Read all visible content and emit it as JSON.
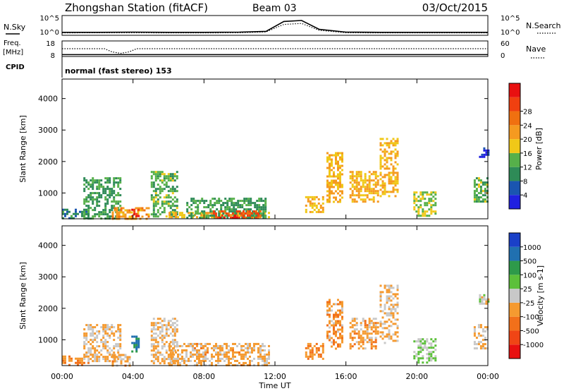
{
  "header": {
    "station": "Zhongshan Station (fitACF)",
    "beam": "Beam 03",
    "date": "03/Oct/2015"
  },
  "sky_panel": {
    "left_label": "N.Sky",
    "right_label": "N.Search",
    "left_ticks": [
      "10^5",
      "10^0"
    ],
    "right_ticks": [
      "10^5",
      "10^0"
    ]
  },
  "freq_panel": {
    "label_line1": "Freq.",
    "label_line2": "[MHz]",
    "left_ticks": [
      "18",
      "8"
    ],
    "right_ticks": [
      "60",
      "0"
    ],
    "right_label": "Nave"
  },
  "cpid": {
    "label": "CPID",
    "text": "normal (fast stereo) 153"
  },
  "time_axis": {
    "label": "Time UT",
    "ticks": [
      "00:00",
      "04:00",
      "08:00",
      "12:00",
      "16:00",
      "20:00",
      "00:00"
    ]
  },
  "colors": {
    "power": [
      "#2020e0",
      "#1a55b0",
      "#2e8b57",
      "#56b04a",
      "#f0c818",
      "#f59a20",
      "#f07010",
      "#f04010",
      "#e81010"
    ],
    "velocity": [
      "#e81010",
      "#f04515",
      "#f2701a",
      "#f59a30",
      "#c8c8c8",
      "#5cc03a",
      "#2e9a4a",
      "#2070b0",
      "#1a40c8"
    ],
    "frame": "#000000"
  },
  "chart_data": [
    {
      "type": "heatmap",
      "panel": "power",
      "ylabel": "Slant Range [km]",
      "xlabel": "Time UT",
      "x_range_hours": [
        0,
        24
      ],
      "ylim_km": [
        180,
        4620
      ],
      "y_ticks": [
        1000,
        2000,
        3000,
        4000
      ],
      "colorbar": {
        "label": "Power [dB]",
        "ticks": [
          "4",
          "8",
          "12",
          "16",
          "20",
          "24",
          "28"
        ],
        "range": [
          0,
          32
        ]
      },
      "regions": [
        {
          "t0": 0.0,
          "t1": 1.5,
          "r0": 200,
          "r1": 500,
          "value": 8
        },
        {
          "t0": 1.2,
          "t1": 3.3,
          "r0": 200,
          "r1": 1500,
          "value": 10
        },
        {
          "t0": 2.8,
          "t1": 4.9,
          "r0": 200,
          "r1": 550,
          "value": 20
        },
        {
          "t0": 3.9,
          "t1": 4.3,
          "r0": 250,
          "r1": 500,
          "value": 27
        },
        {
          "t0": 5.0,
          "t1": 6.5,
          "r0": 250,
          "r1": 1700,
          "value": 12
        },
        {
          "t0": 6.0,
          "t1": 11.7,
          "r0": 200,
          "r1": 400,
          "value": 17
        },
        {
          "t0": 7.0,
          "t1": 11.5,
          "r0": 220,
          "r1": 850,
          "value": 10
        },
        {
          "t0": 8.5,
          "t1": 11.2,
          "r0": 230,
          "r1": 450,
          "value": 26
        },
        {
          "t0": 13.7,
          "t1": 14.7,
          "r0": 400,
          "r1": 900,
          "value": 17
        },
        {
          "t0": 14.9,
          "t1": 15.8,
          "r0": 700,
          "r1": 2300,
          "value": 18
        },
        {
          "t0": 16.2,
          "t1": 17.8,
          "r0": 700,
          "r1": 1700,
          "value": 18
        },
        {
          "t0": 17.9,
          "t1": 18.9,
          "r0": 900,
          "r1": 2750,
          "value": 18
        },
        {
          "t0": 19.8,
          "t1": 21.0,
          "r0": 300,
          "r1": 1050,
          "value": 14
        },
        {
          "t0": 23.2,
          "t1": 24.0,
          "r0": 700,
          "r1": 1500,
          "value": 12
        },
        {
          "t0": 23.5,
          "t1": 24.0,
          "r0": 2150,
          "r1": 2450,
          "value": 4
        }
      ]
    },
    {
      "type": "heatmap",
      "panel": "velocity",
      "ylabel": "Slant Range [km]",
      "xlabel": "Time UT",
      "x_range_hours": [
        0,
        24
      ],
      "ylim_km": [
        180,
        4620
      ],
      "y_ticks": [
        1000,
        2000,
        3000,
        4000
      ],
      "colorbar": {
        "label": "Velocity [m s-1]",
        "ticks": [
          "-1000",
          "-500",
          "-100",
          "-25",
          "25",
          "100",
          "500",
          "1000"
        ],
        "range": [
          -1200,
          1200
        ]
      },
      "regions": [
        {
          "t0": 0.0,
          "t1": 1.5,
          "r0": 200,
          "r1": 500,
          "value": -300
        },
        {
          "t0": 1.2,
          "t1": 3.3,
          "r0": 300,
          "r1": 1500,
          "value": -150
        },
        {
          "t0": 2.8,
          "t1": 3.8,
          "r0": 200,
          "r1": 550,
          "value": -200
        },
        {
          "t0": 3.9,
          "t1": 4.3,
          "r0": 600,
          "r1": 1200,
          "value": 700
        },
        {
          "t0": 5.0,
          "t1": 6.5,
          "r0": 250,
          "r1": 1700,
          "value": -150
        },
        {
          "t0": 6.0,
          "t1": 11.7,
          "r0": 200,
          "r1": 900,
          "value": -200
        },
        {
          "t0": 13.7,
          "t1": 14.7,
          "r0": 400,
          "r1": 900,
          "value": -400
        },
        {
          "t0": 14.9,
          "t1": 15.8,
          "r0": 700,
          "r1": 2300,
          "value": -300
        },
        {
          "t0": 16.2,
          "t1": 17.8,
          "r0": 700,
          "r1": 1700,
          "value": -250
        },
        {
          "t0": 17.9,
          "t1": 18.9,
          "r0": 900,
          "r1": 2750,
          "value": -150
        },
        {
          "t0": 19.8,
          "t1": 21.0,
          "r0": 300,
          "r1": 1050,
          "value": 150
        },
        {
          "t0": 23.2,
          "t1": 24.0,
          "r0": 700,
          "r1": 1500,
          "value": -100
        },
        {
          "t0": 23.5,
          "t1": 24.0,
          "r0": 2150,
          "r1": 2450,
          "value": 25
        }
      ]
    },
    {
      "type": "line",
      "panel": "noise",
      "series": [
        {
          "name": "N.Sky",
          "x": [
            0,
            2,
            4,
            6,
            8,
            10,
            11.5,
            12.5,
            13.5,
            14.5,
            16,
            18,
            20,
            22,
            24
          ],
          "y": [
            0.15,
            0.15,
            0.16,
            0.15,
            0.15,
            0.16,
            0.2,
            0.7,
            0.75,
            0.3,
            0.16,
            0.15,
            0.15,
            0.15,
            0.15
          ]
        },
        {
          "name": "N.Search",
          "x": [
            0,
            2,
            4,
            6,
            8,
            10,
            11.5,
            12.5,
            13.5,
            14.5,
            16,
            18,
            20,
            22,
            24
          ],
          "y": [
            0.12,
            0.13,
            0.13,
            0.12,
            0.12,
            0.13,
            0.17,
            0.55,
            0.6,
            0.25,
            0.13,
            0.12,
            0.12,
            0.12,
            0.12
          ]
        }
      ]
    },
    {
      "type": "line",
      "panel": "frequency",
      "series": [
        {
          "name": "Freq",
          "x": [
            0,
            24
          ],
          "y": [
            9.2,
            9.2
          ]
        },
        {
          "name": "Nave",
          "x": [
            0,
            2.4,
            2.8,
            3.3,
            3.8,
            4.2,
            24
          ],
          "y": [
            0.5,
            0.5,
            0.3,
            0.2,
            0.3,
            0.5,
            0.5
          ]
        }
      ]
    }
  ]
}
